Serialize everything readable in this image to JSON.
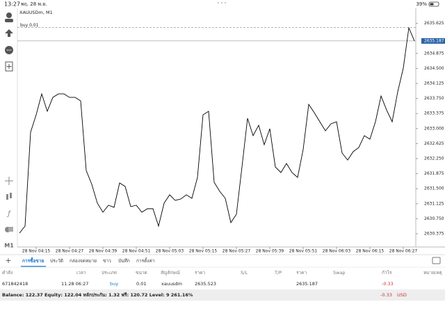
{
  "status_bar": {
    "time": "13:27",
    "date": "พฤ. 28 พ.ย.",
    "battery": "39%"
  },
  "toolbar": {
    "timeframe": "M1"
  },
  "chart_data": {
    "type": "line",
    "title": "XAUUSDm, M1",
    "order_line_label": "buy 0.01",
    "order_price": 2635.523,
    "bid": 2635.187,
    "color": "#000000",
    "grid": false,
    "categories": [
      null,
      null,
      null,
      "28 Nov 04:15",
      null,
      null,
      null,
      null,
      null,
      "28 Nov 04:27",
      null,
      null,
      null,
      null,
      null,
      "28 Nov 04:39",
      null,
      null,
      null,
      null,
      null,
      "28 Nov 04:51",
      null,
      null,
      null,
      null,
      null,
      "28 Nov 05:03",
      null,
      null,
      null,
      null,
      null,
      "28 Nov 05:15",
      null,
      null,
      null,
      null,
      null,
      "28 Nov 05:27",
      null,
      null,
      null,
      null,
      null,
      "28 Nov 05:39",
      null,
      null,
      null,
      null,
      null,
      "28 Nov 05:51",
      null,
      null,
      null,
      null,
      null,
      "28 Nov 06:03",
      null,
      null,
      null,
      null,
      null,
      "28 Nov 06:15",
      null,
      null,
      null,
      null,
      null,
      "28 Nov 06:27",
      null,
      null
    ],
    "values": [
      2630.392,
      2630.566,
      2632.91,
      2633.344,
      2633.865,
      2633.431,
      2633.778,
      2633.865,
      2633.865,
      2633.778,
      2633.778,
      2633.691,
      2631.955,
      2631.608,
      2631.139,
      2630.913,
      2631.087,
      2631.035,
      2631.642,
      2631.556,
      2631.052,
      2631.087,
      2630.913,
      2631.0,
      2631.0,
      2630.566,
      2631.139,
      2631.347,
      2631.208,
      2631.243,
      2631.347,
      2631.26,
      2631.781,
      2633.344,
      2633.431,
      2631.66,
      2631.434,
      2631.26,
      2630.653,
      2630.861,
      2632.042,
      2633.257,
      2632.823,
      2633.083,
      2632.597,
      2632.997,
      2632.042,
      2631.903,
      2632.128,
      2631.903,
      2631.781,
      2632.476,
      2633.604,
      2633.396,
      2633.17,
      2632.944,
      2633.118,
      2633.17,
      2632.389,
      2632.215,
      2632.424,
      2632.528,
      2632.823,
      2632.736,
      2633.17,
      2633.813,
      2633.465,
      2633.17,
      2633.917,
      2634.507,
      2635.514,
      2635.187
    ],
    "ylim": [
      2630.045,
      2636.0
    ],
    "yticks": [
      2630.375,
      {
        "value": 2630.75,
        "label": "2630.750"
      },
      2631.125,
      {
        "value": 2631.5,
        "label": "2631.500"
      },
      2631.875,
      {
        "value": 2632.25,
        "label": "2632.250"
      },
      2632.625,
      {
        "value": 2633.0,
        "label": "2633.000"
      },
      2633.375,
      {
        "value": 2633.75,
        "label": "2633.750"
      },
      2634.125,
      {
        "value": 2634.5,
        "label": "2634.500"
      },
      2634.875,
      2635.625
    ]
  },
  "tabs": [
    "การซื้อขาย",
    "ประวัติ",
    "กล่องจดหมาย",
    "ข่าว",
    "บันทึก",
    "การตั้งค่า"
  ],
  "table": {
    "columns": [
      "คำสั่ง",
      "เวลา",
      "ประเภท",
      "ขนาด",
      "สัญลักษณ์",
      "ราคา",
      "S/L",
      "T/P",
      "ราคา",
      "Swap",
      "กำไร",
      "หมายเหตุ"
    ],
    "row": {
      "ticket": "671842418",
      "time": "11.28 06:27",
      "type": "buy",
      "volume": 0.01,
      "symbol": "xauusdm",
      "open_price": 2635.523,
      "current_price": 2635.187,
      "profit": -0.33
    }
  },
  "footer": {
    "summary": "Balance: 122.37  Equity: 122.04  หลักประกัน: 1.32  ฟรี: 120.72  Level: 9 261.16%",
    "total_profit": -0.33,
    "currency": "USD"
  }
}
